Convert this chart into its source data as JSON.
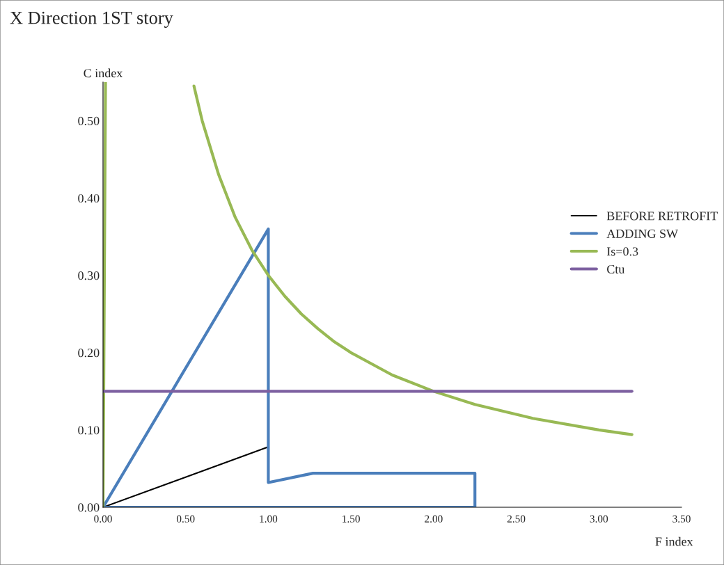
{
  "chart_data": {
    "type": "line",
    "title": "X Direction 1ST story",
    "xlabel": "F index",
    "ylabel": "C index",
    "xlim": [
      0,
      3.5
    ],
    "ylim": [
      0,
      0.55
    ],
    "xticks": [
      {
        "value": 0,
        "label": "0.00"
      },
      {
        "value": 0.5,
        "label": "0.50"
      },
      {
        "value": 1,
        "label": "1.00"
      },
      {
        "value": 1.5,
        "label": "1.50"
      },
      {
        "value": 2,
        "label": "2.00"
      },
      {
        "value": 2.5,
        "label": "2.50"
      },
      {
        "value": 3,
        "label": "3.00"
      },
      {
        "value": 3.5,
        "label": "3.50"
      }
    ],
    "yticks": [
      {
        "value": 0,
        "label": "0.00"
      },
      {
        "value": 0.1,
        "label": "0.10"
      },
      {
        "value": 0.2,
        "label": "0.20"
      },
      {
        "value": 0.3,
        "label": "0.30"
      },
      {
        "value": 0.4,
        "label": "0.40"
      },
      {
        "value": 0.5,
        "label": "0.50"
      }
    ],
    "grid": false,
    "legend": "right",
    "marker": "none",
    "line_style": "solid",
    "series": [
      {
        "name": "BEFORE RETROFIT",
        "color": "#000000",
        "x": [
          0,
          1.0
        ],
        "values": [
          0,
          0.078
        ]
      },
      {
        "name": "ADDING SW",
        "color": "#4a7ebb",
        "x": [
          0,
          1.0,
          1.0,
          1.27,
          2.25,
          2.25,
          null,
          2.25,
          0
        ],
        "values": [
          0,
          0.36,
          0.032,
          0.044,
          0.044,
          0,
          null,
          0,
          0
        ]
      },
      {
        "name": "Is=0.3",
        "color": "#98b954",
        "x": [
          0,
          0.015,
          null,
          0.55,
          0.6,
          0.7,
          0.8,
          0.9,
          1.0,
          1.1,
          1.2,
          1.3,
          1.4,
          1.5,
          1.75,
          2.0,
          2.25,
          2.6,
          3.0,
          3.2
        ],
        "values": [
          0,
          0.55,
          null,
          0.545,
          0.5,
          0.43,
          0.375,
          0.333,
          0.3,
          0.273,
          0.25,
          0.231,
          0.214,
          0.2,
          0.171,
          0.15,
          0.133,
          0.115,
          0.1,
          0.094
        ]
      },
      {
        "name": "Ctu",
        "color": "#7d60a0",
        "x": [
          0,
          3.2
        ],
        "values": [
          0.15,
          0.15
        ]
      }
    ]
  }
}
